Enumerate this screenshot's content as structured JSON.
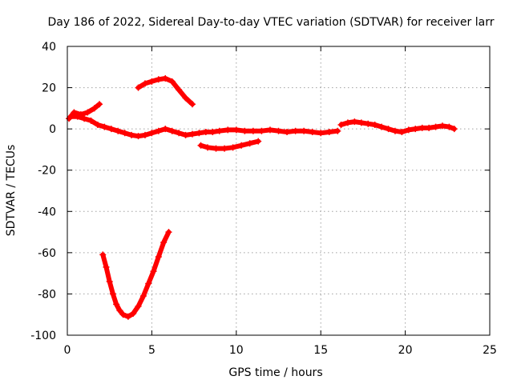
{
  "chart_data": {
    "type": "scatter",
    "title": "Day 186 of 2022, Sidereal Day-to-day VTEC variation (SDTVAR) for receiver larr",
    "xlabel": "GPS time / hours",
    "ylabel": "SDTVAR / TECUs",
    "xlim": [
      0,
      25
    ],
    "ylim": [
      -100,
      40
    ],
    "xticks": [
      0,
      5,
      10,
      15,
      20,
      25
    ],
    "yticks": [
      -100,
      -80,
      -60,
      -40,
      -20,
      0,
      20,
      40
    ],
    "grid": true,
    "legend": "none",
    "marker": "+",
    "color": "#ff0000",
    "series": [
      {
        "name": "track-main",
        "x": [
          0.2,
          0.6,
          1.0,
          1.4,
          1.8,
          2.2,
          2.6,
          3.0,
          3.4,
          3.8,
          4.2,
          4.6,
          5.0,
          5.4,
          5.8,
          6.2,
          6.6,
          7.0,
          7.4,
          7.8,
          8.2,
          8.6,
          9.0,
          9.5,
          10.0,
          10.5,
          11.0,
          11.5,
          12.0,
          12.5,
          13.0,
          13.5,
          14.0,
          14.5,
          15.0,
          15.5,
          16.0
        ],
        "y": [
          6,
          6,
          5,
          4,
          2,
          1,
          0,
          -1,
          -2,
          -3,
          -3.5,
          -3,
          -2,
          -1,
          0,
          -1,
          -2,
          -3,
          -2.5,
          -2,
          -1.5,
          -1.5,
          -1,
          -0.5,
          -0.5,
          -1,
          -1,
          -1,
          -0.5,
          -1,
          -1.5,
          -1,
          -1,
          -1.5,
          -2,
          -1.5,
          -1
        ]
      },
      {
        "name": "track-early",
        "x": [
          0.1,
          0.4,
          0.8,
          1.2,
          1.6,
          1.9
        ],
        "y": [
          5,
          8,
          7,
          8,
          10,
          12
        ]
      },
      {
        "name": "track-late",
        "x": [
          16.2,
          16.6,
          17.0,
          17.4,
          17.8,
          18.2,
          18.6,
          19.0,
          19.4,
          19.8,
          20.2,
          20.6,
          21.0,
          21.4,
          21.8,
          22.2,
          22.6,
          22.9
        ],
        "y": [
          2,
          3,
          3.5,
          3,
          2.5,
          2,
          1,
          0,
          -1,
          -1.5,
          -0.5,
          0,
          0.5,
          0.5,
          1,
          1.5,
          1,
          0
        ]
      },
      {
        "name": "track-high-arc",
        "x": [
          4.2,
          4.6,
          5.0,
          5.4,
          5.8,
          6.2,
          6.6,
          7.0,
          7.4
        ],
        "y": [
          20,
          22,
          23,
          24,
          24.5,
          23,
          19,
          15,
          12
        ]
      },
      {
        "name": "track-mid-arc",
        "x": [
          7.9,
          8.3,
          8.8,
          9.3,
          9.8,
          10.3,
          10.8,
          11.3
        ],
        "y": [
          -8,
          -9,
          -9.5,
          -9.5,
          -9,
          -8,
          -7,
          -6
        ]
      },
      {
        "name": "track-deep-dip",
        "x": [
          2.1,
          2.3,
          2.5,
          2.7,
          2.9,
          3.1,
          3.3,
          3.6,
          3.9,
          4.2,
          4.5,
          4.8,
          5.1,
          5.4,
          5.7,
          6.0
        ],
        "y": [
          -61,
          -67,
          -74,
          -80,
          -85,
          -88,
          -90,
          -91,
          -89.5,
          -86,
          -81,
          -75,
          -69,
          -62,
          -55,
          -50
        ]
      }
    ]
  }
}
